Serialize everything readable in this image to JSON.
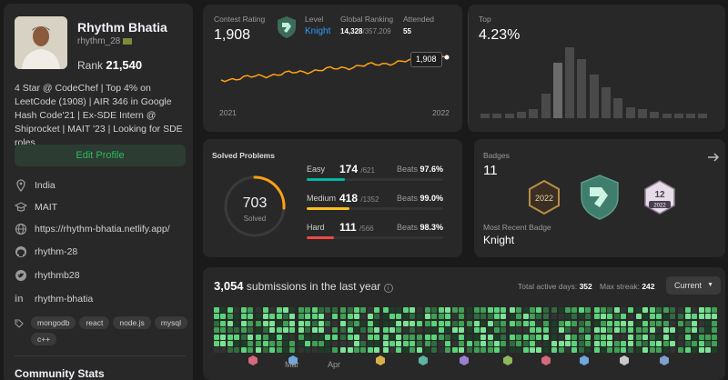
{
  "profile": {
    "name": "Rhythm Bhatia",
    "handle": "rhythm_28",
    "rank_label": "Rank",
    "rank_value": "21,540",
    "bio": "4 Star @ CodeChef | Top 4% on LeetCode (1908) | AIR 346 in Google Hash Code'21 | Ex-SDE Intern @ Shiprocket | MAIT '23 | Looking for SDE roles",
    "edit_label": "Edit Profile",
    "location": "India",
    "school": "MAIT",
    "website": "https://rhythm-bhatia.netlify.app/",
    "github": "rhythm-28",
    "twitter": "rhythmb28",
    "linkedin": "rhythm-bhatia",
    "skills": [
      "mongodb",
      "react",
      "node.js",
      "mysql",
      "c++"
    ],
    "community_title": "Community Stats"
  },
  "contest": {
    "rating_label": "Contest Rating",
    "rating": "1,908",
    "level_label": "Level",
    "level": "Knight",
    "global_label": "Global Ranking",
    "global_rank": "14,328",
    "global_total": "/357,209",
    "attended_label": "Attended",
    "attended": "55",
    "tooltip": "1,908",
    "x_start": "2021",
    "x_end": "2022",
    "line_color": "#ffa116"
  },
  "top": {
    "label": "Top",
    "value": "4.23%",
    "hist_values": [
      2,
      2,
      2,
      3,
      4,
      11,
      25,
      32,
      27,
      20,
      14,
      9,
      5,
      4,
      3,
      2,
      2,
      2,
      2
    ]
  },
  "solved": {
    "title": "Solved Problems",
    "total": "703",
    "total_label": "Solved",
    "rows": [
      {
        "name": "Easy",
        "count": "174",
        "total": "/621",
        "beats_label": "Beats",
        "beats": "97.6%",
        "color": "#00b8a3",
        "fill": 0.28
      },
      {
        "name": "Medium",
        "count": "418",
        "total": "/1352",
        "beats_label": "Beats",
        "beats": "99.0%",
        "color": "#ffc01e",
        "fill": 0.31
      },
      {
        "name": "Hard",
        "count": "111",
        "total": "/566",
        "beats_label": "Beats",
        "beats": "98.3%",
        "color": "#ef4743",
        "fill": 0.2
      }
    ]
  },
  "badges": {
    "label": "Badges",
    "count": "11",
    "recent_label": "Most Recent Badge",
    "recent": "Knight",
    "badge_2022_text": "2022",
    "badge_12_text": "12",
    "badge_12_year": "2022"
  },
  "submissions": {
    "count": "3,054",
    "label": "submissions in the last year",
    "active_label": "Total active days:",
    "active": "352",
    "streak_label": "Max streak:",
    "streak": "242",
    "select_value": "Current",
    "months": [
      "Mar",
      "Apr"
    ]
  },
  "colors": {
    "accent_green": "#2cbb5d",
    "easy": "#00b8a3",
    "medium": "#ffc01e",
    "hard": "#ef4743"
  }
}
